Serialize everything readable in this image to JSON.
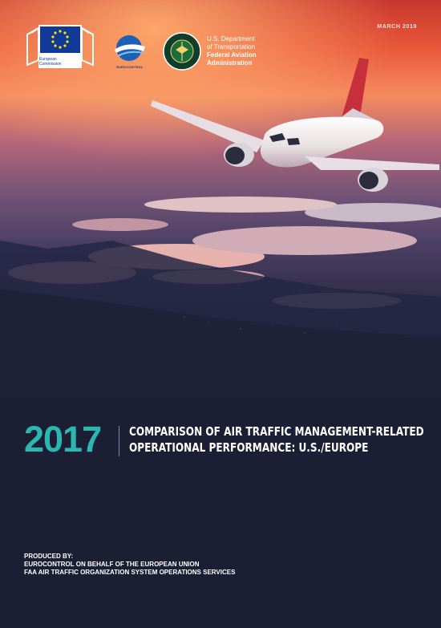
{
  "cover": {
    "date": "MARCH 2019",
    "year": "2017",
    "title_line1": "COMPARISON OF AIR TRAFFIC MANAGEMENT-RELATED",
    "title_line2": "OPERATIONAL PERFORMANCE: U.S./EUROPE",
    "produced_by_label": "PRODUCED BY:",
    "produced_by_line1": "EUROCONTROL ON BEHALF OF THE EUROPEAN UNION",
    "produced_by_line2": "FAA AIR TRAFFIC ORGANIZATION SYSTEM OPERATIONS SERVICES"
  },
  "logos": {
    "ec_line1": "European",
    "ec_line2": "Commission",
    "eurocontrol": "EUROCONTROL",
    "dot_line1": "U.S. Department",
    "dot_line2": "of Transportation",
    "faa_line1": "Federal Aviation",
    "faa_line2": "Administration"
  },
  "colors": {
    "accent": "#2bb7b1",
    "background": "#1c1e33",
    "sky_top": "#e14a32"
  }
}
